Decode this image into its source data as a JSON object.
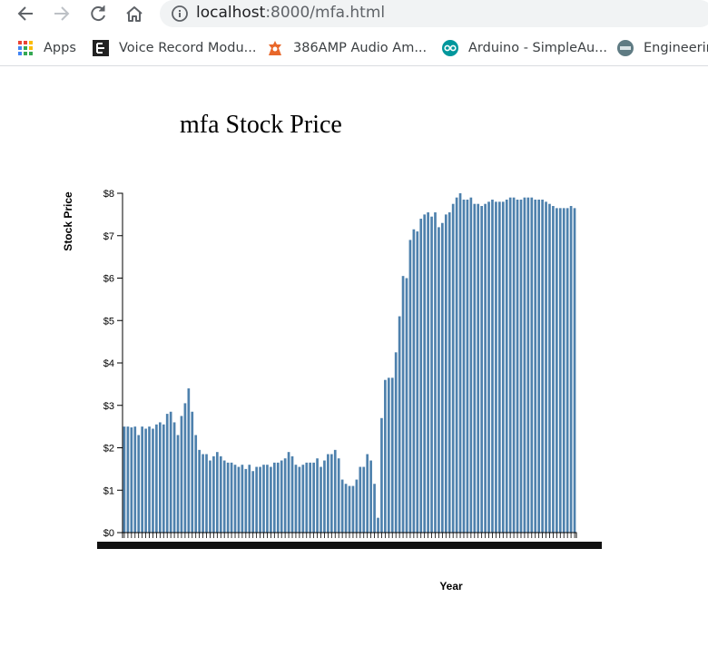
{
  "browser": {
    "url_host": "localhost",
    "url_path": ":8000/mfa.html",
    "bookmarks": [
      {
        "label": "Apps",
        "icon": "apps-grid-icon"
      },
      {
        "label": "Voice Record Modu...",
        "icon": "voice-module-icon"
      },
      {
        "label": "386AMP Audio Am...",
        "icon": "audio-amp-icon"
      },
      {
        "label": "Arduino - SimpleAu...",
        "icon": "arduino-icon"
      },
      {
        "label": "Engineerin",
        "icon": "engineering-icon"
      }
    ]
  },
  "colors": {
    "bar": "#4e81ad"
  },
  "chart_data": {
    "type": "bar",
    "title": "mfa Stock Price",
    "xlabel": "Year",
    "ylabel": "Stock Price",
    "ylim": [
      0,
      8
    ],
    "yticks": [
      "$0",
      "$1",
      "$2",
      "$3",
      "$4",
      "$5",
      "$6",
      "$7",
      "$8"
    ],
    "values": [
      2.5,
      2.5,
      2.48,
      2.5,
      2.3,
      2.5,
      2.45,
      2.5,
      2.45,
      2.55,
      2.6,
      2.55,
      2.8,
      2.85,
      2.6,
      2.3,
      2.75,
      3.05,
      3.4,
      2.85,
      2.3,
      1.95,
      1.85,
      1.85,
      1.7,
      1.8,
      1.9,
      1.8,
      1.7,
      1.65,
      1.65,
      1.6,
      1.55,
      1.6,
      1.5,
      1.6,
      1.45,
      1.55,
      1.55,
      1.6,
      1.6,
      1.55,
      1.65,
      1.65,
      1.7,
      1.75,
      1.9,
      1.8,
      1.6,
      1.55,
      1.6,
      1.65,
      1.65,
      1.65,
      1.75,
      1.55,
      1.7,
      1.85,
      1.85,
      1.95,
      1.75,
      1.25,
      1.15,
      1.1,
      1.1,
      1.25,
      1.55,
      1.55,
      1.85,
      1.7,
      1.15,
      0.35,
      2.7,
      3.6,
      3.65,
      3.65,
      4.25,
      5.1,
      6.05,
      6.0,
      6.9,
      7.15,
      7.1,
      7.4,
      7.5,
      7.55,
      7.45,
      7.55,
      7.2,
      7.3,
      7.5,
      7.55,
      7.75,
      7.9,
      8.0,
      7.85,
      7.85,
      7.9,
      7.75,
      7.75,
      7.7,
      7.75,
      7.8,
      7.85,
      7.8,
      7.8,
      7.8,
      7.85,
      7.9,
      7.9,
      7.85,
      7.85,
      7.9,
      7.9,
      7.9,
      7.85,
      7.85,
      7.85,
      7.8,
      7.75,
      7.7,
      7.65,
      7.65,
      7.65,
      7.65,
      7.7,
      7.65
    ]
  }
}
